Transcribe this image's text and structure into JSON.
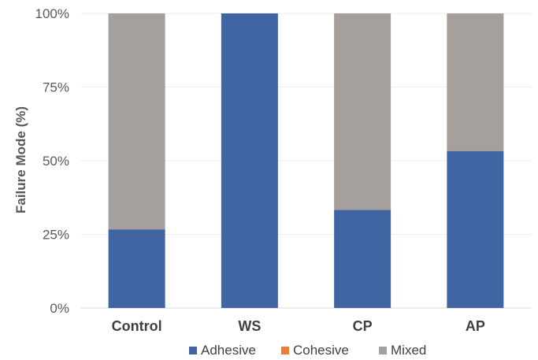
{
  "chart_data": {
    "type": "bar",
    "stacked": true,
    "categories": [
      "Control",
      "WS",
      "CP",
      "AP"
    ],
    "series": [
      {
        "name": "Adhesive",
        "color": "#4165a3",
        "values": [
          26.7,
          100,
          33.3,
          53.3
        ]
      },
      {
        "name": "Cohesive",
        "color": "#ed7d31",
        "values": [
          0,
          0,
          0,
          0
        ]
      },
      {
        "name": "Mixed",
        "color": "#a5a09c",
        "values": [
          73.3,
          0,
          66.7,
          46.7
        ]
      }
    ],
    "ylabel": "Failure Mode (%)",
    "ylim": [
      0,
      100
    ],
    "yticks": [
      "0%",
      "25%",
      "50%",
      "75%",
      "100%"
    ],
    "ytick_values": [
      0,
      25,
      50,
      75,
      100
    ],
    "grid": true,
    "legend_position": "bottom"
  }
}
